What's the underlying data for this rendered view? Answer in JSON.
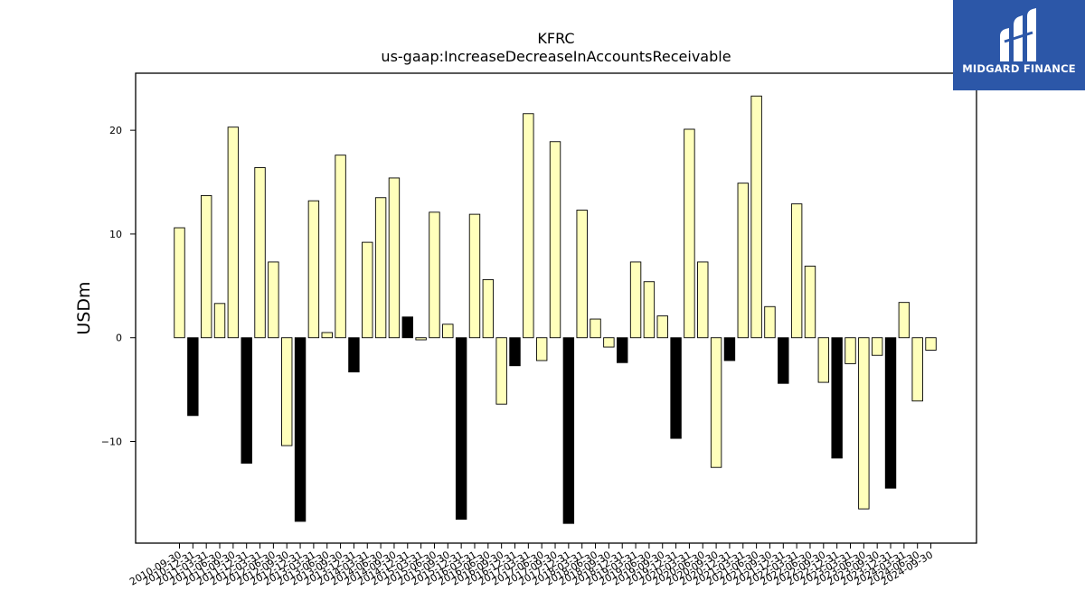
{
  "brand": {
    "name": "MIDGARD FINANCE",
    "bg_color": "#2c57a8"
  },
  "colors": {
    "positive": "#ffffbb",
    "negative": "#000000",
    "edge": "#000000"
  },
  "chart_data": {
    "type": "bar",
    "title": "KFRC",
    "subtitle": "us-gaap:IncreaseDecreaseInAccountsReceivable",
    "ylabel": "USDm",
    "xlabel": "",
    "ylim": [
      -19.8,
      25.5
    ],
    "yticks": [
      -10,
      0,
      10,
      20
    ],
    "grid": false,
    "categories": [
      "2010-09-30",
      "2010-12-31",
      "2011-03-31",
      "2011-06-30",
      "2011-09-30",
      "2011-12-31",
      "2012-03-31",
      "2012-06-30",
      "2012-09-30",
      "2012-12-31",
      "2013-03-31",
      "2013-06-30",
      "2013-09-30",
      "2013-12-31",
      "2014-03-31",
      "2014-06-30",
      "2014-09-30",
      "2014-12-31",
      "2015-03-31",
      "2015-06-30",
      "2015-09-30",
      "2015-12-31",
      "2016-03-31",
      "2016-06-30",
      "2016-09-30",
      "2016-12-31",
      "2017-03-31",
      "2017-06-30",
      "2017-09-30",
      "2017-12-31",
      "2018-03-31",
      "2018-06-30",
      "2018-09-30",
      "2018-12-31",
      "2019-03-31",
      "2019-06-30",
      "2019-09-30",
      "2019-12-31",
      "2020-03-31",
      "2020-06-30",
      "2020-09-30",
      "2020-12-31",
      "2021-03-31",
      "2021-06-30",
      "2021-09-30",
      "2021-12-31",
      "2022-03-31",
      "2022-06-30",
      "2022-09-30",
      "2022-12-31",
      "2023-03-31",
      "2023-06-30",
      "2023-09-30",
      "2023-12-31",
      "2024-03-31",
      "2024-06-30",
      "2024-09-30"
    ],
    "values": [
      10.6,
      -7.5,
      13.7,
      3.3,
      20.3,
      -12.1,
      16.4,
      7.3,
      -10.4,
      -17.7,
      13.2,
      0.5,
      17.6,
      -3.3,
      9.2,
      13.5,
      15.4,
      2.0,
      -0.2,
      12.1,
      1.3,
      -17.5,
      11.9,
      5.6,
      -6.4,
      -2.7,
      21.6,
      -2.2,
      18.9,
      -17.9,
      12.3,
      1.8,
      -0.9,
      -2.4,
      7.3,
      5.4,
      2.1,
      -9.7,
      20.1,
      7.3,
      -12.5,
      -2.2,
      14.9,
      23.3,
      3.0,
      -4.4,
      12.9,
      6.9,
      -4.3,
      -11.6,
      -2.5,
      -16.5,
      -1.7,
      -14.5,
      3.4,
      -6.1,
      -1.2
    ],
    "fill": [
      "light",
      "dark",
      "light",
      "light",
      "light",
      "dark",
      "light",
      "light",
      "light",
      "dark",
      "light",
      "light",
      "light",
      "dark",
      "light",
      "light",
      "light",
      "dark",
      "light",
      "light",
      "light",
      "dark",
      "light",
      "light",
      "light",
      "dark",
      "light",
      "light",
      "light",
      "dark",
      "light",
      "light",
      "light",
      "dark",
      "light",
      "light",
      "light",
      "dark",
      "light",
      "light",
      "light",
      "dark",
      "light",
      "light",
      "light",
      "dark",
      "light",
      "light",
      "light",
      "dark",
      "light",
      "light",
      "light",
      "dark",
      "light",
      "light",
      "light"
    ]
  }
}
